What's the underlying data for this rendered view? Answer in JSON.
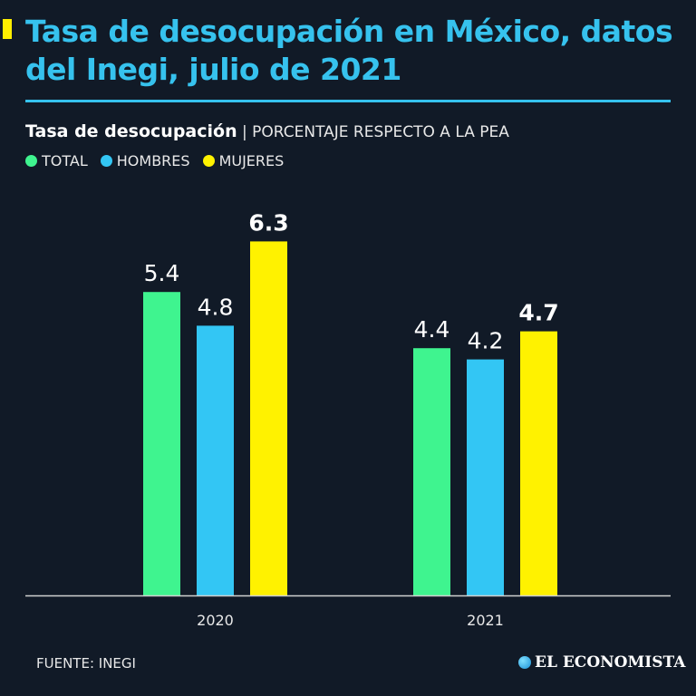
{
  "header": {
    "title": "Tasa de desocupación en México, datos del Inegi, julio de 2021"
  },
  "chart_data": {
    "type": "bar",
    "title": "Tasa de desocupación",
    "subtitle": "PORCENTAJE RESPECTO A LA PEA",
    "categories": [
      "2020",
      "2021"
    ],
    "series": [
      {
        "name": "TOTAL",
        "color": "#3ff48f",
        "values": [
          5.4,
          4.4
        ],
        "labels": [
          "5.4",
          "4.4"
        ],
        "bold": false
      },
      {
        "name": "HOMBRES",
        "color": "#33c6f4",
        "values": [
          4.8,
          4.2
        ],
        "labels": [
          "4.8",
          "4.2"
        ],
        "bold": false
      },
      {
        "name": "MUJERES",
        "color": "#fff200",
        "values": [
          6.3,
          4.7
        ],
        "labels": [
          "6.3",
          "4.7"
        ],
        "bold": true
      }
    ],
    "ylim": [
      0,
      6.3
    ],
    "grid": false,
    "legend": "top-left"
  },
  "footer": {
    "source": "FUENTE: INEGI",
    "logo": "EL ECONOMISTA"
  }
}
